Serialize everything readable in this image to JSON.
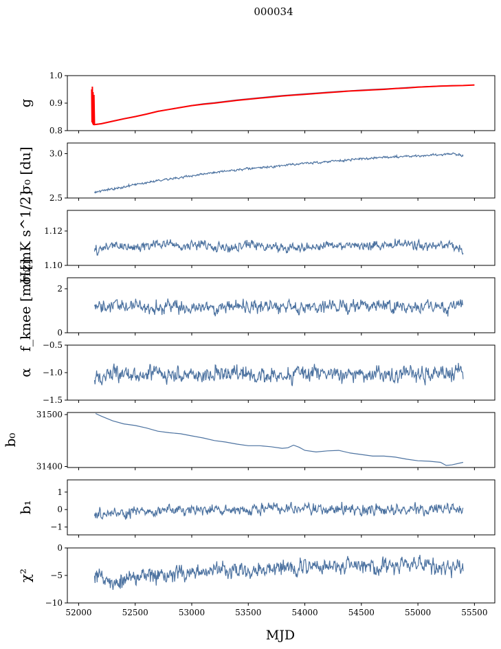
{
  "suptitle": "000034",
  "xlabel": "MJD",
  "x_ticks": [
    52000,
    52500,
    53000,
    53500,
    54000,
    54500,
    55000,
    55500
  ],
  "chart_data": [
    {
      "type": "line",
      "ylabel": "g",
      "xlim": [
        51900,
        55680
      ],
      "ylim": [
        0.8,
        1.0
      ],
      "yticks": [
        "1.0",
        "0.9",
        "0.8"
      ],
      "ytick_values": [
        1.0,
        0.9,
        0.8
      ],
      "series": [
        {
          "color": "#4c72a0",
          "x": [
            52120,
            52140,
            52200,
            52300,
            52400,
            52500,
            52600,
            52700,
            52800,
            52900,
            53000,
            53100,
            53200,
            53300,
            53400,
            53500,
            53600,
            53700,
            53800,
            53900,
            54000,
            54100,
            54200,
            54300,
            54400,
            54500,
            54600,
            54700,
            54800,
            54900,
            55000,
            55100,
            55200,
            55300,
            55400
          ],
          "y": [
            0.828,
            0.823,
            0.826,
            0.835,
            0.844,
            0.852,
            0.861,
            0.871,
            0.878,
            0.885,
            0.892,
            0.898,
            0.902,
            0.907,
            0.912,
            0.916,
            0.92,
            0.924,
            0.928,
            0.931,
            0.934,
            0.937,
            0.94,
            0.943,
            0.945,
            0.948,
            0.95,
            0.952,
            0.954,
            0.957,
            0.959,
            0.961,
            0.963,
            0.964,
            0.964
          ]
        },
        {
          "color": "#ff0000",
          "x": [
            52115,
            52118,
            52121,
            52124,
            52127,
            52130,
            52135,
            52140,
            52200,
            52300,
            52400,
            52500,
            52600,
            52700,
            52800,
            52900,
            53000,
            53100,
            53200,
            53300,
            53400,
            53500,
            53600,
            53700,
            53800,
            53900,
            54000,
            54100,
            54200,
            54300,
            54400,
            54500,
            54600,
            54700,
            54800,
            54900,
            55000,
            55100,
            55200,
            55300,
            55400,
            55500
          ],
          "y": [
            0.95,
            0.83,
            0.96,
            0.825,
            0.94,
            0.82,
            0.93,
            0.822,
            0.825,
            0.834,
            0.843,
            0.851,
            0.86,
            0.87,
            0.877,
            0.884,
            0.891,
            0.896,
            0.9,
            0.905,
            0.91,
            0.914,
            0.918,
            0.922,
            0.926,
            0.929,
            0.932,
            0.935,
            0.938,
            0.941,
            0.944,
            0.946,
            0.948,
            0.95,
            0.953,
            0.955,
            0.958,
            0.96,
            0.962,
            0.963,
            0.964,
            0.966
          ]
        }
      ]
    },
    {
      "type": "line",
      "ylabel": "σ₀ [du]",
      "xlim": [
        51900,
        55680
      ],
      "ylim": [
        2.5,
        3.12
      ],
      "yticks": [
        "3.0",
        "2.5"
      ],
      "ytick_values": [
        3.0,
        2.5
      ],
      "series": [
        {
          "color": "#4c72a0",
          "noise": 0.006,
          "x": [
            52140,
            52300,
            52500,
            52700,
            52900,
            53100,
            53300,
            53500,
            53700,
            53900,
            54100,
            54300,
            54500,
            54700,
            54900,
            55100,
            55300,
            55400
          ],
          "y": [
            2.57,
            2.6,
            2.65,
            2.7,
            2.73,
            2.77,
            2.8,
            2.83,
            2.85,
            2.88,
            2.9,
            2.92,
            2.94,
            2.96,
            2.97,
            2.98,
            3.0,
            2.98
          ]
        }
      ]
    },
    {
      "type": "line",
      "ylabel": "σ₀[mK s^1/2]",
      "xlim": [
        51900,
        55680
      ],
      "ylim": [
        1.1,
        1.132
      ],
      "yticks": [
        "1.12",
        "1.10"
      ],
      "ytick_values": [
        1.12,
        1.1
      ],
      "series": [
        {
          "color": "#4c72a0",
          "noise": 0.0013,
          "x": [
            52140,
            52300,
            52500,
            52700,
            52900,
            53100,
            53300,
            53500,
            53700,
            53900,
            54100,
            54300,
            54500,
            54700,
            54900,
            55100,
            55300,
            55400
          ],
          "y": [
            1.108,
            1.112,
            1.11,
            1.113,
            1.111,
            1.112,
            1.11,
            1.112,
            1.111,
            1.11,
            1.111,
            1.112,
            1.111,
            1.112,
            1.113,
            1.111,
            1.112,
            1.107
          ]
        }
      ]
    },
    {
      "type": "line",
      "ylabel": "f_knee [mHz]",
      "xlim": [
        51900,
        55680
      ],
      "ylim": [
        0,
        2.5
      ],
      "yticks": [
        "2",
        "0"
      ],
      "ytick_values": [
        2,
        0
      ],
      "series": [
        {
          "color": "#4c72a0",
          "noise": 0.14,
          "x": [
            52140,
            52500,
            53000,
            53500,
            54000,
            54500,
            55000,
            55400
          ],
          "y": [
            1.15,
            1.2,
            1.15,
            1.2,
            1.18,
            1.2,
            1.18,
            1.2
          ]
        }
      ]
    },
    {
      "type": "line",
      "ylabel": "α",
      "xlim": [
        51900,
        55680
      ],
      "ylim": [
        -1.5,
        -0.5
      ],
      "yticks": [
        "−0.5",
        "−1.0",
        "−1.5"
      ],
      "ytick_values": [
        -0.5,
        -1.0,
        -1.5
      ],
      "series": [
        {
          "color": "#4c72a0",
          "noise": 0.07,
          "x": [
            52140,
            52500,
            53000,
            53500,
            54000,
            54500,
            55000,
            55400
          ],
          "y": [
            -1.05,
            -1.03,
            -1.03,
            -1.04,
            -1.02,
            -1.03,
            -1.03,
            -1.02
          ]
        }
      ]
    },
    {
      "type": "line",
      "ylabel": "b₀",
      "xlim": [
        51900,
        55680
      ],
      "ylim": [
        31398,
        31504
      ],
      "yticks": [
        "31500",
        "31400"
      ],
      "ytick_values": [
        31500,
        31400
      ],
      "series": [
        {
          "color": "#4c72a0",
          "x": [
            52150,
            52200,
            52300,
            52400,
            52500,
            52600,
            52700,
            52800,
            52900,
            53000,
            53100,
            53200,
            53300,
            53400,
            53500,
            53600,
            53700,
            53800,
            53850,
            53900,
            53950,
            54000,
            54100,
            54200,
            54300,
            54400,
            54500,
            54600,
            54700,
            54800,
            54900,
            55000,
            55100,
            55200,
            55250,
            55300,
            55400
          ],
          "y": [
            31502,
            31497,
            31488,
            31482,
            31479,
            31474,
            31468,
            31465,
            31463,
            31459,
            31455,
            31450,
            31447,
            31443,
            31440,
            31440,
            31438,
            31435,
            31436,
            31441,
            31437,
            31431,
            31428,
            31430,
            31431,
            31426,
            31423,
            31420,
            31420,
            31418,
            31414,
            31411,
            31410,
            31408,
            31402,
            31403,
            31408
          ]
        }
      ]
    },
    {
      "type": "line",
      "ylabel": "b₁",
      "xlim": [
        51900,
        55680
      ],
      "ylim": [
        -1.45,
        1.7
      ],
      "yticks": [
        "1",
        "0",
        "−1"
      ],
      "ytick_values": [
        1,
        0,
        -1
      ],
      "series": [
        {
          "color": "#4c72a0",
          "noise": 0.14,
          "x": [
            52140,
            52500,
            53000,
            53500,
            54000,
            54500,
            55000,
            55400
          ],
          "y": [
            -0.3,
            -0.15,
            -0.05,
            0.0,
            0.05,
            0.0,
            0.0,
            0.0
          ]
        }
      ]
    },
    {
      "type": "line",
      "ylabel": "χ²",
      "xlim": [
        51900,
        55680
      ],
      "ylim": [
        -10,
        0
      ],
      "yticks": [
        "0",
        "−5",
        "−10"
      ],
      "ytick_values": [
        0,
        -5,
        -10
      ],
      "series": [
        {
          "color": "#4c72a0",
          "noise": 0.7,
          "x": [
            52140,
            52300,
            52500,
            53000,
            53500,
            54000,
            54500,
            55000,
            55400
          ],
          "y": [
            -5.0,
            -6.2,
            -5.3,
            -4.5,
            -3.8,
            -3.5,
            -3.3,
            -3.2,
            -3.5
          ]
        }
      ]
    }
  ]
}
